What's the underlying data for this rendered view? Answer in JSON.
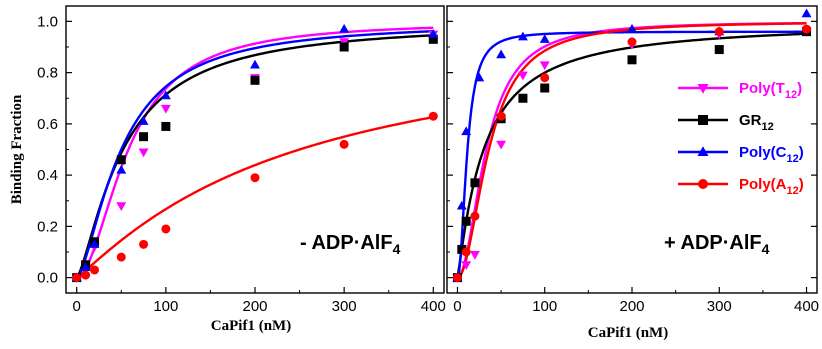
{
  "chart_data": [
    {
      "type": "scatter",
      "title": "",
      "xlabel": "CaPif1 (nM)",
      "ylabel": "Binding Fraction",
      "xlim": [
        -12,
        412
      ],
      "ylim": [
        -0.06,
        1.06
      ],
      "xticks": [
        0,
        100,
        200,
        300,
        400
      ],
      "xtick_labels": [
        "0",
        "100",
        "200",
        "300",
        "400"
      ],
      "yticks": [
        0.0,
        0.2,
        0.4,
        0.6,
        0.8,
        1.0
      ],
      "ytick_labels": [
        "0.0",
        "0.2",
        "0.4",
        "0.6",
        "0.8",
        "1.0"
      ],
      "grid": false,
      "annotation": {
        "prefix": "- ADP·AlF",
        "sub": "4"
      },
      "series": [
        {
          "key": "polyT",
          "color": "#ff00ff",
          "marker": "triangle-down",
          "x": [
            0,
            10,
            20,
            50,
            75,
            100,
            200,
            300,
            400
          ],
          "y": [
            0.0,
            0.05,
            0.12,
            0.28,
            0.49,
            0.66,
            0.78,
            0.92,
            0.95
          ],
          "fit": {
            "bmax": 1.0,
            "k": 58,
            "n": 1.9
          }
        },
        {
          "key": "gr12",
          "color": "#000000",
          "marker": "square",
          "x": [
            0,
            10,
            20,
            50,
            75,
            100,
            200,
            300,
            400
          ],
          "y": [
            0.0,
            0.05,
            0.14,
            0.46,
            0.55,
            0.59,
            0.77,
            0.9,
            0.93
          ],
          "fit": {
            "bmax": 1.0,
            "k": 52,
            "n": 1.4
          }
        },
        {
          "key": "polyC",
          "color": "#0000ff",
          "marker": "triangle-up",
          "x": [
            0,
            10,
            20,
            50,
            75,
            100,
            200,
            300,
            400
          ],
          "y": [
            0.0,
            0.04,
            0.13,
            0.42,
            0.61,
            0.71,
            0.83,
            0.97,
            0.95
          ],
          "fit": {
            "bmax": 1.0,
            "k": 50,
            "n": 1.55
          }
        },
        {
          "key": "polyA",
          "color": "#ff0000",
          "marker": "circle",
          "x": [
            0,
            10,
            20,
            50,
            75,
            100,
            200,
            300,
            400
          ],
          "y": [
            0.0,
            0.01,
            0.03,
            0.08,
            0.13,
            0.19,
            0.39,
            0.52,
            0.63
          ],
          "fit": {
            "bmax": 1.0,
            "k": 250,
            "n": 1.1
          }
        }
      ]
    },
    {
      "type": "scatter",
      "title": "",
      "xlabel": "CaPif1 (nM)",
      "ylabel": "",
      "xlim": [
        -12,
        412
      ],
      "ylim": [
        -0.06,
        1.06
      ],
      "xticks": [
        0,
        100,
        200,
        300,
        400
      ],
      "xtick_labels": [
        "0",
        "100",
        "200",
        "300",
        "400"
      ],
      "yticks": [
        0.0,
        0.2,
        0.4,
        0.6,
        0.8,
        1.0
      ],
      "grid": false,
      "annotation": {
        "prefix": "+ ADP·AlF",
        "sub": "4"
      },
      "legend": {
        "position": "right",
        "entries": [
          {
            "key": "polyT",
            "label": "Poly(T",
            "sub": "12",
            "suffix": ")",
            "color": "#ff00ff",
            "marker": "triangle-down"
          },
          {
            "key": "gr12",
            "label": "GR",
            "sub": "12",
            "suffix": "",
            "color": "#000000",
            "marker": "square"
          },
          {
            "key": "polyC",
            "label": "Poly(C",
            "sub": "12",
            "suffix": ")",
            "color": "#0000ff",
            "marker": "triangle-up"
          },
          {
            "key": "polyA",
            "label": "Poly(A",
            "sub": "12",
            "suffix": ")",
            "color": "#ff0000",
            "marker": "circle"
          }
        ]
      },
      "series": [
        {
          "key": "polyT",
          "color": "#ff00ff",
          "marker": "triangle-down",
          "x": [
            0,
            10,
            20,
            50,
            75,
            100,
            200,
            300,
            400
          ],
          "y": [
            0.0,
            0.05,
            0.09,
            0.52,
            0.79,
            0.83,
            0.91,
            0.95,
            0.96
          ],
          "fit": {
            "bmax": 1.0,
            "k": 33,
            "n": 2.0
          }
        },
        {
          "key": "gr12",
          "color": "#000000",
          "marker": "square",
          "x": [
            0,
            5,
            10,
            20,
            50,
            75,
            100,
            200,
            300,
            400
          ],
          "y": [
            0.0,
            0.11,
            0.22,
            0.37,
            0.62,
            0.7,
            0.74,
            0.85,
            0.89,
            0.96
          ],
          "fit": {
            "bmax": 1.0,
            "k": 30,
            "n": 1.15
          }
        },
        {
          "key": "polyC",
          "color": "#0000ff",
          "marker": "triangle-up",
          "x": [
            0,
            5,
            10,
            25,
            50,
            75,
            100,
            200,
            300,
            400
          ],
          "y": [
            0.0,
            0.28,
            0.57,
            0.78,
            0.87,
            0.94,
            0.93,
            0.97,
            0.96,
            1.03
          ],
          "fit": {
            "bmax": 0.96,
            "k": 11,
            "n": 2.1
          }
        },
        {
          "key": "polyA",
          "color": "#ff0000",
          "marker": "circle",
          "x": [
            0,
            10,
            20,
            50,
            100,
            200,
            300,
            400
          ],
          "y": [
            0.0,
            0.1,
            0.24,
            0.63,
            0.78,
            0.92,
            0.96,
            0.97
          ],
          "fit": {
            "bmax": 1.0,
            "k": 36,
            "n": 2.0
          }
        }
      ]
    }
  ]
}
